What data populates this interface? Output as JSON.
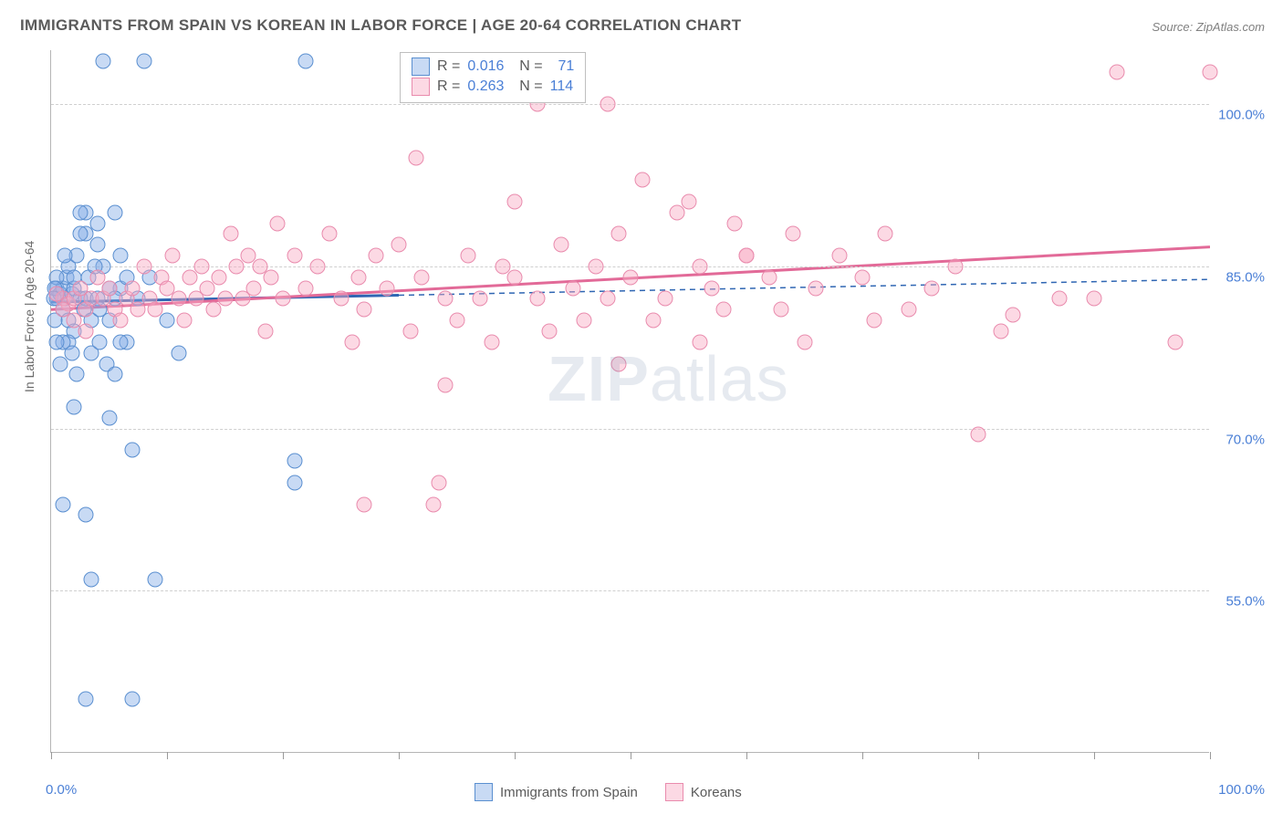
{
  "title": "IMMIGRANTS FROM SPAIN VS KOREAN IN LABOR FORCE | AGE 20-64 CORRELATION CHART",
  "source": "Source: ZipAtlas.com",
  "ylabel": "In Labor Force | Age 20-64",
  "watermark_bold": "ZIP",
  "watermark_light": "atlas",
  "chart": {
    "type": "scatter",
    "xlim": [
      0,
      100
    ],
    "ylim": [
      40,
      105
    ],
    "background_color": "#ffffff",
    "grid_color": "#cfcfcf",
    "axis_color": "#b5b5b5",
    "y_ticks": [
      55,
      70,
      85,
      100
    ],
    "y_tick_labels": [
      "55.0%",
      "70.0%",
      "85.0%",
      "100.0%"
    ],
    "x_ticks": [
      0,
      10,
      20,
      30,
      40,
      50,
      60,
      70,
      80,
      90,
      100
    ],
    "x_tick_label_left": "0.0%",
    "x_tick_label_right": "100.0%",
    "series": [
      {
        "name": "Immigrants from Spain",
        "fill": "rgba(132,174,230,0.45)",
        "stroke": "#5a8fd0",
        "trend_color": "#2f66b3",
        "trend_solid_end_x": 30,
        "trend_y_start": 81.7,
        "trend_y_end": 83.8,
        "R": "0.016",
        "N": "71",
        "points": [
          [
            0.5,
            82
          ],
          [
            0.5,
            83
          ],
          [
            0.8,
            82.5
          ],
          [
            1.0,
            81
          ],
          [
            1.0,
            83
          ],
          [
            1.2,
            82
          ],
          [
            1.3,
            84
          ],
          [
            1.5,
            80
          ],
          [
            1.5,
            85
          ],
          [
            1.8,
            82.5
          ],
          [
            2.0,
            83
          ],
          [
            2.0,
            79
          ],
          [
            2.2,
            86
          ],
          [
            2.5,
            82
          ],
          [
            2.8,
            81
          ],
          [
            3.0,
            88
          ],
          [
            3.0,
            90
          ],
          [
            3.2,
            84
          ],
          [
            3.5,
            80
          ],
          [
            3.5,
            77
          ],
          [
            4.0,
            89
          ],
          [
            4.0,
            87
          ],
          [
            4.2,
            78
          ],
          [
            4.5,
            85
          ],
          [
            4.8,
            76
          ],
          [
            5.0,
            80
          ],
          [
            5.5,
            90
          ],
          [
            5.5,
            75
          ],
          [
            6.0,
            83
          ],
          [
            6.5,
            78
          ],
          [
            7.0,
            68
          ],
          [
            8.0,
            104
          ],
          [
            9.0,
            56
          ],
          [
            10.0,
            80
          ],
          [
            11.0,
            77
          ],
          [
            1.0,
            63
          ],
          [
            2.0,
            72
          ],
          [
            3.0,
            62
          ],
          [
            3.5,
            56
          ],
          [
            3.0,
            45
          ],
          [
            5.0,
            71
          ],
          [
            7.0,
            45
          ],
          [
            22.0,
            104
          ],
          [
            21.0,
            67
          ],
          [
            21.0,
            65
          ],
          [
            4.5,
            104
          ],
          [
            6.0,
            78
          ],
          [
            6.0,
            86
          ],
          [
            7.5,
            82
          ],
          [
            8.5,
            84
          ],
          [
            2.5,
            88
          ],
          [
            2.5,
            90
          ],
          [
            3.0,
            82
          ],
          [
            1.5,
            78
          ],
          [
            1.0,
            78
          ],
          [
            0.5,
            78
          ],
          [
            0.8,
            76
          ],
          [
            4.0,
            82
          ],
          [
            5.0,
            83
          ],
          [
            2.0,
            84
          ],
          [
            1.2,
            86
          ],
          [
            0.5,
            84
          ],
          [
            0.3,
            80
          ],
          [
            0.3,
            83
          ],
          [
            0.2,
            82
          ],
          [
            1.8,
            77
          ],
          [
            2.2,
            75
          ],
          [
            3.8,
            85
          ],
          [
            4.2,
            81
          ],
          [
            5.5,
            82
          ],
          [
            6.5,
            84
          ]
        ]
      },
      {
        "name": "Koreans",
        "fill": "rgba(248,170,195,0.45)",
        "stroke": "#e98bad",
        "trend_color": "#e26a98",
        "trend_solid_end_x": 100,
        "trend_y_start": 81.0,
        "trend_y_end": 86.8,
        "R": "0.263",
        "N": "114",
        "points": [
          [
            1,
            82
          ],
          [
            1.5,
            81.5
          ],
          [
            2,
            82
          ],
          [
            2.5,
            83
          ],
          [
            3,
            81
          ],
          [
            3.5,
            82
          ],
          [
            4,
            84
          ],
          [
            4.5,
            82
          ],
          [
            5,
            83
          ],
          [
            5.5,
            81
          ],
          [
            6,
            80
          ],
          [
            6.5,
            82
          ],
          [
            7,
            83
          ],
          [
            7.5,
            81
          ],
          [
            8,
            85
          ],
          [
            8.5,
            82
          ],
          [
            9,
            81
          ],
          [
            9.5,
            84
          ],
          [
            10,
            83
          ],
          [
            10.5,
            86
          ],
          [
            11,
            82
          ],
          [
            11.5,
            80
          ],
          [
            12,
            84
          ],
          [
            12.5,
            82
          ],
          [
            13,
            85
          ],
          [
            13.5,
            83
          ],
          [
            14,
            81
          ],
          [
            14.5,
            84
          ],
          [
            15,
            82
          ],
          [
            15.5,
            88
          ],
          [
            16,
            85
          ],
          [
            16.5,
            82
          ],
          [
            17,
            86
          ],
          [
            17.5,
            83
          ],
          [
            18,
            85
          ],
          [
            18.5,
            79
          ],
          [
            19,
            84
          ],
          [
            19.5,
            89
          ],
          [
            20,
            82
          ],
          [
            21,
            86
          ],
          [
            22,
            83
          ],
          [
            23,
            85
          ],
          [
            24,
            88
          ],
          [
            25,
            82
          ],
          [
            26,
            78
          ],
          [
            26.5,
            84
          ],
          [
            27,
            81
          ],
          [
            28,
            86
          ],
          [
            29,
            83
          ],
          [
            30,
            87
          ],
          [
            31,
            79
          ],
          [
            31.5,
            95
          ],
          [
            32,
            84
          ],
          [
            33,
            63
          ],
          [
            33.5,
            65
          ],
          [
            33,
            103
          ],
          [
            34,
            82
          ],
          [
            34,
            74
          ],
          [
            35,
            80
          ],
          [
            36,
            86
          ],
          [
            37,
            82
          ],
          [
            38,
            78
          ],
          [
            39,
            85
          ],
          [
            40,
            91
          ],
          [
            40,
            84
          ],
          [
            42,
            82
          ],
          [
            43,
            79
          ],
          [
            44,
            87
          ],
          [
            45,
            83
          ],
          [
            46,
            80
          ],
          [
            47,
            85
          ],
          [
            48,
            82
          ],
          [
            49,
            88
          ],
          [
            49,
            76
          ],
          [
            50,
            84
          ],
          [
            51,
            93
          ],
          [
            52,
            80
          ],
          [
            53,
            82
          ],
          [
            54,
            90
          ],
          [
            55,
            91
          ],
          [
            56,
            85
          ],
          [
            56,
            78
          ],
          [
            57,
            83
          ],
          [
            58,
            81
          ],
          [
            59,
            89
          ],
          [
            60,
            86
          ],
          [
            62,
            84
          ],
          [
            63,
            81
          ],
          [
            64,
            88
          ],
          [
            65,
            78
          ],
          [
            66,
            83
          ],
          [
            68,
            86
          ],
          [
            70,
            84
          ],
          [
            71,
            80
          ],
          [
            72,
            88
          ],
          [
            74,
            81
          ],
          [
            76,
            83
          ],
          [
            78,
            85
          ],
          [
            80,
            69.5
          ],
          [
            82,
            79
          ],
          [
            83,
            80.5
          ],
          [
            87,
            82
          ],
          [
            90,
            82
          ],
          [
            92,
            103
          ],
          [
            97,
            78
          ],
          [
            100,
            103
          ],
          [
            27,
            63
          ],
          [
            1,
            81
          ],
          [
            0.5,
            82.5
          ],
          [
            2,
            80
          ],
          [
            3,
            79
          ],
          [
            42,
            100
          ],
          [
            48,
            100
          ],
          [
            60,
            86
          ]
        ]
      }
    ]
  },
  "legend_bottom": {
    "series1": "Immigrants from Spain",
    "series2": "Koreans"
  }
}
